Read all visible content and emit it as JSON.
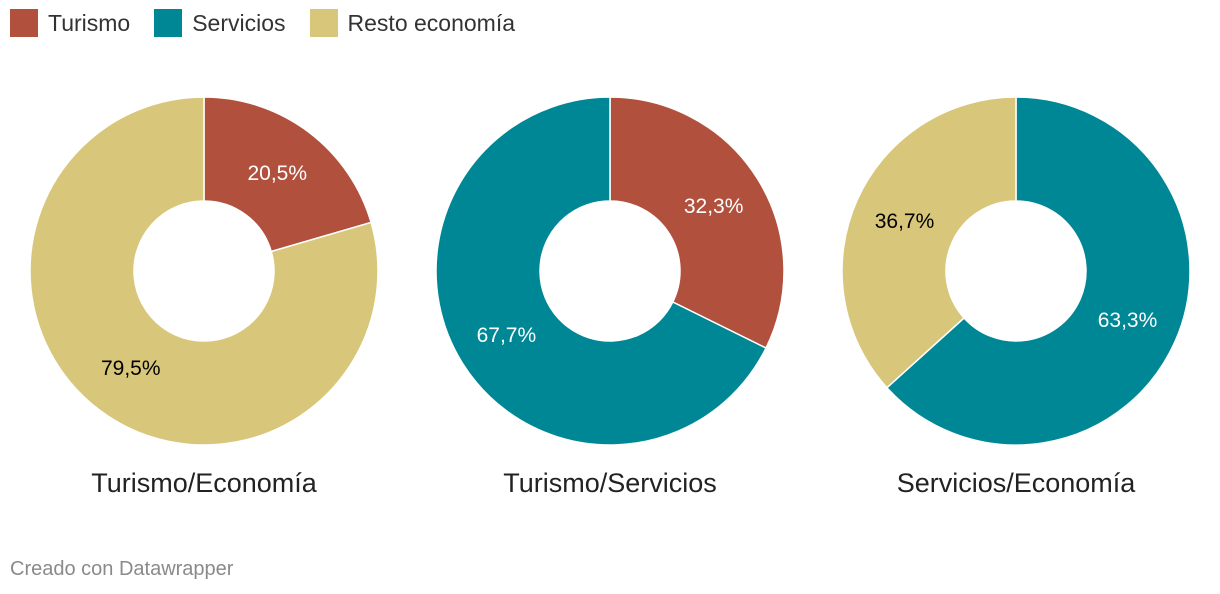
{
  "legend": [
    {
      "label": "Turismo",
      "color": "#b1503d"
    },
    {
      "label": "Servicios",
      "color": "#008796"
    },
    {
      "label": "Resto economía",
      "color": "#d8c67a"
    }
  ],
  "chart_data": [
    {
      "type": "pie",
      "title": "Turismo/Economía",
      "slices": [
        {
          "name": "Turismo",
          "value": 20.5,
          "label": "20,5%",
          "color": "#b1503d",
          "label_color": "#ffffff"
        },
        {
          "name": "Resto economía",
          "value": 79.5,
          "label": "79,5%",
          "color": "#d8c67a",
          "label_color": "#000000"
        }
      ]
    },
    {
      "type": "pie",
      "title": "Turismo/Servicios",
      "slices": [
        {
          "name": "Turismo",
          "value": 32.3,
          "label": "32,3%",
          "color": "#b1503d",
          "label_color": "#ffffff"
        },
        {
          "name": "Servicios",
          "value": 67.7,
          "label": "67,7%",
          "color": "#008796",
          "label_color": "#ffffff"
        }
      ]
    },
    {
      "type": "pie",
      "title": "Servicios/Economía",
      "slices": [
        {
          "name": "Servicios",
          "value": 63.3,
          "label": "63,3%",
          "color": "#008796",
          "label_color": "#ffffff"
        },
        {
          "name": "Resto economía",
          "value": 36.7,
          "label": "36,7%",
          "color": "#d8c67a",
          "label_color": "#000000"
        }
      ]
    }
  ],
  "footer": "Creado con Datawrapper"
}
